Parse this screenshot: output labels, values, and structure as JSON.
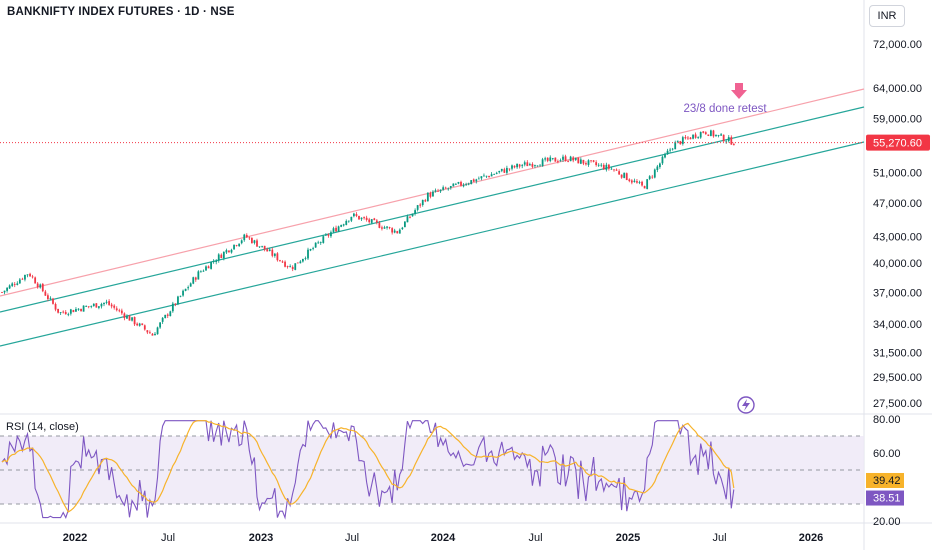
{
  "header": {
    "symbol_title": "BANKNIFTY INDEX FUTURES · 1D · NSE",
    "currency_button": "INR"
  },
  "annotation": {
    "text": "23/8 done retest"
  },
  "colors": {
    "up": "#089981",
    "down": "#f23645",
    "resistance_line": "#f7a1ab",
    "channel_line": "#26a69a",
    "price_label": "#f23645",
    "rsi_line": "#7e57c2",
    "rsi_ma": "#f7b32b",
    "rsi_band": "#ede7f6"
  },
  "icons": {
    "arrow": "arrow-down-icon",
    "lightning": "lightning-icon"
  },
  "chart_data": [
    {
      "type": "candlestick",
      "title": "BANKNIFTY INDEX FUTURES · 1D · NSE",
      "y_axis_labels": [
        "72,000.00",
        "64,000.00",
        "59,000.00",
        "51,000.00",
        "47,000.00",
        "43,000.00",
        "40,000.00",
        "37,000.00",
        "34,000.00",
        "31,500.00",
        "29,500.00",
        "27,500.00"
      ],
      "y_scale": "log",
      "last_price_label": "55,270.60",
      "last_price": 55270.6,
      "x_tick_labels": [
        "2022",
        "Jul",
        "2023",
        "Jul",
        "2024",
        "Jul",
        "2025",
        "Jul",
        "2026"
      ],
      "approx_closes": [
        {
          "date": "2021-07",
          "close": 35500
        },
        {
          "date": "2021-10",
          "close": 39000
        },
        {
          "date": "2021-12",
          "close": 35000
        },
        {
          "date": "2022-03",
          "close": 36000
        },
        {
          "date": "2022-06",
          "close": 33000
        },
        {
          "date": "2022-09",
          "close": 39000
        },
        {
          "date": "2022-12",
          "close": 43000
        },
        {
          "date": "2023-03",
          "close": 39500
        },
        {
          "date": "2023-07",
          "close": 45500
        },
        {
          "date": "2023-10",
          "close": 43500
        },
        {
          "date": "2023-12",
          "close": 48000
        },
        {
          "date": "2024-06",
          "close": 52000
        },
        {
          "date": "2024-09",
          "close": 53000
        },
        {
          "date": "2024-12",
          "close": 51500
        },
        {
          "date": "2025-02",
          "close": 49000
        },
        {
          "date": "2025-04",
          "close": 55000
        },
        {
          "date": "2025-06",
          "close": 57000
        },
        {
          "date": "2025-08",
          "close": 55270.6
        }
      ]
    },
    {
      "type": "line",
      "title": "RSI (14, close)",
      "y_axis_labels": [
        "80.00",
        "60.00",
        "20.00"
      ],
      "band": [
        30,
        70
      ],
      "series": [
        {
          "name": "RSI",
          "last_value_label": "38.51",
          "last_value": 38.51
        },
        {
          "name": "RSI MA",
          "last_value_label": "39.42",
          "last_value": 39.42
        }
      ]
    }
  ]
}
